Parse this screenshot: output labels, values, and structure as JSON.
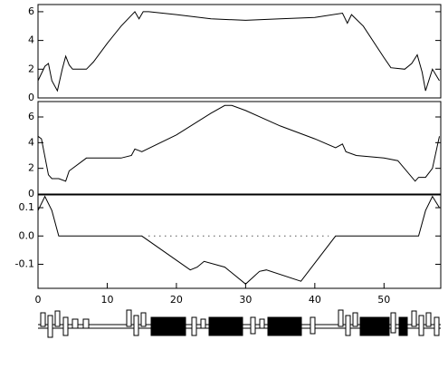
{
  "chart_data": [
    {
      "type": "line",
      "xlim": [
        0,
        58.2
      ],
      "ylim": [
        0,
        6.5
      ],
      "yticks": [
        0,
        2,
        4,
        6
      ],
      "x": [
        0,
        1,
        1.5,
        2,
        2.8,
        3.5,
        4,
        4.5,
        5,
        7,
        8,
        10,
        12,
        14,
        14.6,
        15.2,
        16,
        20,
        25,
        30,
        35,
        40,
        44,
        44.7,
        45.3,
        47,
        50,
        51,
        53,
        54,
        54.8,
        55.5,
        56,
        57,
        58
      ],
      "series": [
        {
          "color": "#000000",
          "values": [
            1.2,
            2.2,
            2.4,
            1.2,
            0.5,
            2,
            2.9,
            2.3,
            2,
            2,
            2.5,
            3.8,
            5,
            6,
            5.5,
            6,
            6,
            5.8,
            5.5,
            5.4,
            5.5,
            5.6,
            5.9,
            5.2,
            5.8,
            5,
            2.8,
            2.1,
            2,
            2.4,
            3,
            1.8,
            0.5,
            2,
            1.2
          ]
        }
      ]
    },
    {
      "type": "line",
      "xlim": [
        0,
        58.2
      ],
      "ylim": [
        0,
        7.2
      ],
      "yticks": [
        0,
        2,
        4,
        6
      ],
      "x": [
        0,
        0.5,
        1.5,
        2,
        3,
        4,
        4.5,
        7,
        10,
        12,
        13.5,
        14,
        14.5,
        15,
        20,
        25,
        27,
        28,
        30,
        35,
        40,
        43,
        44,
        44.5,
        46,
        50,
        52,
        54.5,
        55,
        56,
        57,
        58
      ],
      "series": [
        {
          "color": "#000000",
          "values": [
            4.5,
            4.3,
            1.5,
            1.2,
            1.2,
            1.0,
            1.8,
            2.8,
            2.8,
            2.8,
            3,
            3.5,
            3.4,
            3.3,
            4.6,
            6.3,
            6.9,
            6.9,
            6.5,
            5.3,
            4.3,
            3.6,
            3.9,
            3.3,
            3.0,
            2.8,
            2.6,
            1.0,
            1.3,
            1.3,
            2,
            4.5
          ]
        }
      ]
    },
    {
      "type": "line",
      "xlim": [
        0,
        58.2
      ],
      "ylim": [
        -0.185,
        0.145
      ],
      "yticks": [
        0.1,
        {
          "value": 0,
          "label": "0.0"
        },
        -0.1
      ],
      "xticks": [
        0,
        10,
        20,
        30,
        40,
        50
      ],
      "zero_line": "dotted",
      "x": [
        0,
        1,
        2,
        3,
        15,
        22,
        23,
        24,
        27,
        30,
        32,
        33,
        38,
        43,
        55,
        56,
        57,
        58
      ],
      "series": [
        {
          "color": "#000000",
          "values": [
            0.09,
            0.14,
            0.09,
            0,
            0,
            -0.12,
            -0.11,
            -0.09,
            -0.11,
            -0.17,
            -0.125,
            -0.12,
            -0.16,
            0,
            0,
            0.09,
            0.14,
            0.1
          ]
        }
      ]
    }
  ]
}
